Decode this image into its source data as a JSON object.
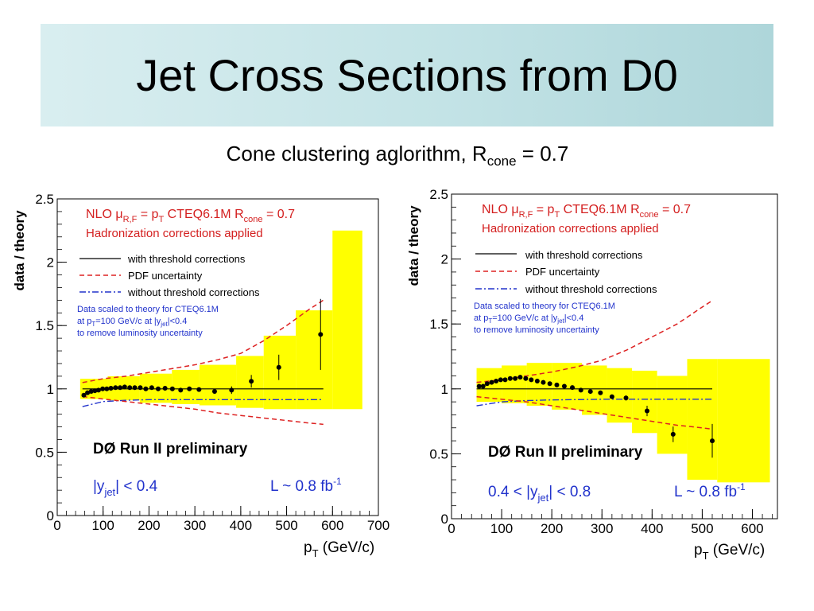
{
  "slide": {
    "title": "Jet Cross Sections from D0",
    "subtitle_prefix": "Cone clustering aglorithm, R",
    "subtitle_sub": "cone",
    "subtitle_suffix": " = 0.7"
  },
  "colors": {
    "band": "#ffff00",
    "pdf": "#dd2222",
    "without_threshold": "#2233cc",
    "with_threshold": "#000000",
    "data": "#000000",
    "legend_red_text": "#d42020",
    "legend_blue_text": "#2233cc"
  },
  "chart_data": [
    {
      "type": "scatter",
      "ylabel": "data / theory",
      "xlabel_main": "p",
      "xlabel_sub": "T",
      "xlabel_suffix": " (GeV/c)",
      "xlim": [
        0,
        700
      ],
      "ylim": [
        0,
        2.5
      ],
      "xticks": [
        0,
        100,
        200,
        300,
        400,
        500,
        600,
        700
      ],
      "yticks": [
        0,
        0.5,
        1,
        1.5,
        2,
        2.5
      ],
      "legend": {
        "nlo_prefix": "NLO  μ",
        "nlo_sub1": "R,F",
        "nlo_mid": " = p",
        "nlo_sub2": "T",
        "nlo_mid2": "  CTEQ6.1M   R",
        "nlo_sub3": "cone",
        "nlo_suffix": " = 0.7",
        "hadronization": "Hadronization corrections applied",
        "with_threshold": "with threshold corrections",
        "pdf": "PDF uncertainty",
        "without_threshold": "without threshold corrections",
        "scaled_line1": "Data scaled to theory for CTEQ6.1M",
        "scaled_line2_pre": "at p",
        "scaled_line2_sub1": "T",
        "scaled_line2_mid": "=100 GeV/c at |y",
        "scaled_line2_sub2": "jet",
        "scaled_line2_suf": "|<0.4",
        "scaled_line3": "to remove luminosity uncertainty"
      },
      "experiment_label": "DØ Run II preliminary",
      "rapidity_label_pre": "|y",
      "rapidity_label_sub": "jet",
      "rapidity_label_suf": "| < 0.4",
      "lumi_label_pre": "L ~ 0.8 fb",
      "lumi_label_sup": "-1",
      "with_threshold_line": {
        "x": [
          55,
          580
        ],
        "y": [
          1.0,
          1.0
        ]
      },
      "without_threshold_line": {
        "x": [
          55,
          100,
          150,
          200,
          300,
          400,
          580
        ],
        "y": [
          0.86,
          0.9,
          0.91,
          0.915,
          0.915,
          0.915,
          0.915
        ]
      },
      "pdf_upper": {
        "x": [
          55,
          100,
          150,
          200,
          250,
          300,
          350,
          400,
          450,
          500,
          550,
          580
        ],
        "y": [
          1.05,
          1.08,
          1.1,
          1.13,
          1.16,
          1.19,
          1.23,
          1.28,
          1.38,
          1.5,
          1.63,
          1.7
        ]
      },
      "pdf_lower": {
        "x": [
          55,
          100,
          150,
          200,
          250,
          300,
          350,
          400,
          450,
          500,
          550,
          580
        ],
        "y": [
          0.94,
          0.92,
          0.9,
          0.88,
          0.86,
          0.84,
          0.81,
          0.79,
          0.77,
          0.75,
          0.73,
          0.72
        ]
      },
      "band": [
        {
          "x0": 50,
          "x1": 110,
          "lo": 0.92,
          "hi": 1.08
        },
        {
          "x0": 110,
          "x1": 180,
          "lo": 0.91,
          "hi": 1.1
        },
        {
          "x0": 180,
          "x1": 250,
          "lo": 0.89,
          "hi": 1.12
        },
        {
          "x0": 250,
          "x1": 310,
          "lo": 0.88,
          "hi": 1.15
        },
        {
          "x0": 310,
          "x1": 390,
          "lo": 0.87,
          "hi": 1.19
        },
        {
          "x0": 390,
          "x1": 450,
          "lo": 0.85,
          "hi": 1.26
        },
        {
          "x0": 450,
          "x1": 520,
          "lo": 0.84,
          "hi": 1.42
        },
        {
          "x0": 520,
          "x1": 600,
          "lo": 0.84,
          "hi": 1.62
        },
        {
          "x0": 600,
          "x1": 665,
          "lo": 0.84,
          "hi": 2.25
        }
      ],
      "points": {
        "x": [
          58,
          66,
          74,
          82,
          90,
          99,
          108,
          117,
          127,
          137,
          147,
          158,
          169,
          181,
          193,
          206,
          220,
          235,
          251,
          269,
          288,
          309,
          343,
          380,
          423,
          483,
          574
        ],
        "y": [
          0.95,
          0.97,
          0.98,
          0.985,
          0.99,
          1.0,
          1.0,
          1.005,
          1.01,
          1.01,
          1.015,
          1.01,
          1.01,
          1.01,
          1.0,
          1.01,
          1.0,
          1.005,
          1.0,
          0.99,
          1.0,
          0.995,
          0.98,
          0.99,
          1.06,
          1.17,
          1.43
        ],
        "err": [
          0.005,
          0.005,
          0.005,
          0.005,
          0.005,
          0.005,
          0.005,
          0.005,
          0.005,
          0.005,
          0.005,
          0.005,
          0.005,
          0.005,
          0.005,
          0.005,
          0.005,
          0.005,
          0.005,
          0.005,
          0.005,
          0.005,
          0.02,
          0.03,
          0.05,
          0.1,
          0.28
        ]
      }
    },
    {
      "type": "scatter",
      "ylabel": "data / theory",
      "xlabel_main": "p",
      "xlabel_sub": "T",
      "xlabel_suffix": " (GeV/c)",
      "xlim": [
        0,
        650
      ],
      "ylim": [
        0,
        2.5
      ],
      "xticks": [
        0,
        100,
        200,
        300,
        400,
        500,
        600
      ],
      "yticks": [
        0,
        0.5,
        1,
        1.5,
        2,
        2.5
      ],
      "legend": {
        "nlo_prefix": "NLO  μ",
        "nlo_sub1": "R,F",
        "nlo_mid": " = p",
        "nlo_sub2": "T",
        "nlo_mid2": "  CTEQ6.1M   R",
        "nlo_sub3": "cone",
        "nlo_suffix": " = 0.7",
        "hadronization": "Hadronization corrections applied",
        "with_threshold": "with threshold corrections",
        "pdf": "PDF uncertainty",
        "without_threshold": "without threshold corrections",
        "scaled_line1": "Data scaled to theory for CTEQ6.1M",
        "scaled_line2_pre": "at p",
        "scaled_line2_sub1": "T",
        "scaled_line2_mid": "=100 GeV/c at |y",
        "scaled_line2_sub2": "jet",
        "scaled_line2_suf": "|<0.4",
        "scaled_line3": "to remove luminosity uncertainty"
      },
      "experiment_label": "DØ Run II preliminary",
      "rapidity_label_pre": "0.4 < |y",
      "rapidity_label_sub": "jet",
      "rapidity_label_suf": "| < 0.8",
      "lumi_label_pre": "L ~ 0.8 fb",
      "lumi_label_sup": "-1",
      "with_threshold_line": {
        "x": [
          50,
          520
        ],
        "y": [
          1.0,
          1.0
        ]
      },
      "without_threshold_line": {
        "x": [
          50,
          100,
          150,
          200,
          300,
          400,
          520
        ],
        "y": [
          0.87,
          0.9,
          0.91,
          0.915,
          0.92,
          0.92,
          0.92
        ]
      },
      "pdf_upper": {
        "x": [
          50,
          100,
          150,
          200,
          250,
          300,
          350,
          400,
          450,
          500,
          520
        ],
        "y": [
          1.05,
          1.07,
          1.1,
          1.13,
          1.17,
          1.22,
          1.3,
          1.4,
          1.5,
          1.63,
          1.68
        ]
      },
      "pdf_lower": {
        "x": [
          50,
          100,
          150,
          200,
          250,
          300,
          350,
          400,
          450,
          500,
          520
        ],
        "y": [
          0.94,
          0.92,
          0.9,
          0.87,
          0.84,
          0.81,
          0.78,
          0.75,
          0.72,
          0.7,
          0.69
        ]
      },
      "band": [
        {
          "x0": 50,
          "x1": 100,
          "lo": 0.9,
          "hi": 1.16
        },
        {
          "x0": 100,
          "x1": 150,
          "lo": 0.89,
          "hi": 1.18
        },
        {
          "x0": 150,
          "x1": 200,
          "lo": 0.87,
          "hi": 1.2
        },
        {
          "x0": 200,
          "x1": 260,
          "lo": 0.84,
          "hi": 1.2
        },
        {
          "x0": 260,
          "x1": 310,
          "lo": 0.8,
          "hi": 1.18
        },
        {
          "x0": 310,
          "x1": 360,
          "lo": 0.74,
          "hi": 1.16
        },
        {
          "x0": 360,
          "x1": 410,
          "lo": 0.66,
          "hi": 1.14
        },
        {
          "x0": 410,
          "x1": 470,
          "lo": 0.5,
          "hi": 1.1
        },
        {
          "x0": 470,
          "x1": 530,
          "lo": 0.3,
          "hi": 1.23
        },
        {
          "x0": 530,
          "x1": 635,
          "lo": 0.28,
          "hi": 1.23
        }
      ],
      "points": {
        "x": [
          55,
          63,
          71,
          80,
          89,
          98,
          107,
          117,
          127,
          137,
          148,
          159,
          171,
          183,
          196,
          210,
          225,
          241,
          258,
          277,
          297,
          320,
          348,
          390,
          442,
          520
        ],
        "y": [
          1.02,
          1.02,
          1.04,
          1.05,
          1.06,
          1.07,
          1.07,
          1.08,
          1.08,
          1.09,
          1.08,
          1.07,
          1.06,
          1.05,
          1.04,
          1.03,
          1.02,
          1.01,
          0.99,
          0.98,
          0.97,
          0.94,
          0.93,
          0.83,
          0.65,
          0.6
        ],
        "err": [
          0.005,
          0.005,
          0.005,
          0.005,
          0.005,
          0.005,
          0.005,
          0.005,
          0.005,
          0.005,
          0.005,
          0.005,
          0.005,
          0.005,
          0.005,
          0.005,
          0.005,
          0.005,
          0.005,
          0.005,
          0.005,
          0.01,
          0.02,
          0.04,
          0.06,
          0.13
        ]
      }
    }
  ]
}
